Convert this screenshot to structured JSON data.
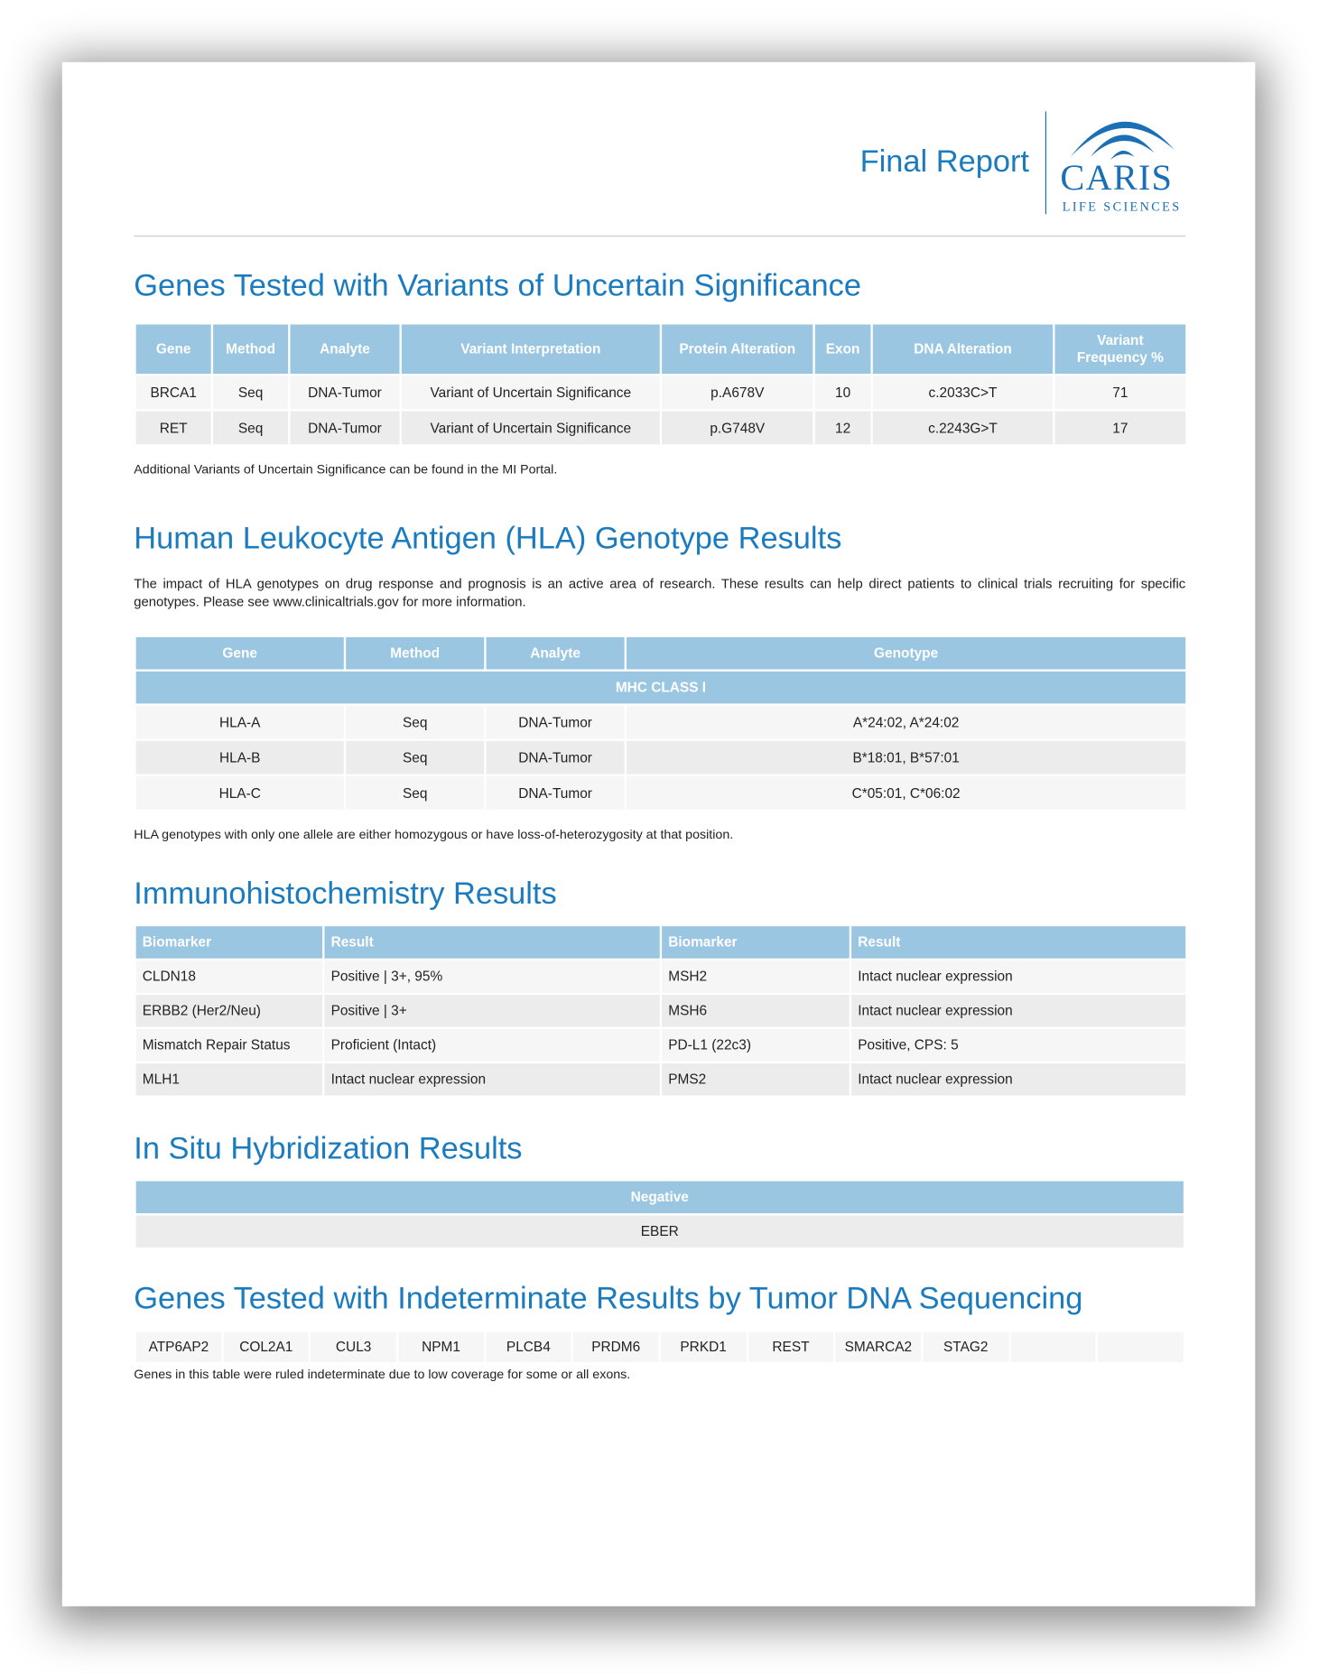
{
  "header": {
    "title": "Final Report",
    "logo": {
      "name": "CARIS",
      "sub": "LIFE SCIENCES",
      "color": "#1a6fb5"
    }
  },
  "colors": {
    "title": "#1a7bbf",
    "table_header": "#9ac6e2"
  },
  "vus": {
    "title": "Genes Tested with Variants of Uncertain Significance",
    "columns": [
      "Gene",
      "Method",
      "Analyte",
      "Variant Interpretation",
      "Protein Alteration",
      "Exon",
      "DNA Alteration",
      "Variant Frequency %"
    ],
    "rows": [
      [
        "BRCA1",
        "Seq",
        "DNA-Tumor",
        "Variant of Uncertain Significance",
        "p.A678V",
        "10",
        "c.2033C>T",
        "71"
      ],
      [
        "RET",
        "Seq",
        "DNA-Tumor",
        "Variant of Uncertain Significance",
        "p.G748V",
        "12",
        "c.2243G>T",
        "17"
      ]
    ],
    "note": "Additional Variants of Uncertain Significance can be found in the MI Portal."
  },
  "hla": {
    "title": "Human Leukocyte Antigen (HLA) Genotype Results",
    "intro": "The impact of HLA genotypes on drug response and prognosis is an active area of research. These results can help direct patients to clinical trials recruiting for specific genotypes. Please see www.clinicaltrials.gov for more information.",
    "columns": [
      "Gene",
      "Method",
      "Analyte",
      "Genotype"
    ],
    "group": "MHC CLASS I",
    "rows": [
      [
        "HLA-A",
        "Seq",
        "DNA-Tumor",
        "A*24:02, A*24:02"
      ],
      [
        "HLA-B",
        "Seq",
        "DNA-Tumor",
        "B*18:01, B*57:01"
      ],
      [
        "HLA-C",
        "Seq",
        "DNA-Tumor",
        "C*05:01, C*06:02"
      ]
    ],
    "note": "HLA genotypes with only one allele are either homozygous or have loss-of-heterozygosity at that position."
  },
  "ihc": {
    "title": "Immunohistochemistry Results",
    "columns": [
      "Biomarker",
      "Result",
      "Biomarker",
      "Result"
    ],
    "rows": [
      [
        "CLDN18",
        "Positive | 3+, 95%",
        "MSH2",
        "Intact nuclear expression"
      ],
      [
        "ERBB2 (Her2/Neu)",
        "Positive | 3+",
        "MSH6",
        "Intact nuclear expression"
      ],
      [
        "Mismatch Repair Status",
        "Proficient (Intact)",
        "PD-L1 (22c3)",
        "Positive, CPS: 5"
      ],
      [
        "MLH1",
        "Intact nuclear expression",
        "PMS2",
        "Intact nuclear expression"
      ]
    ]
  },
  "ish": {
    "title": "In Situ Hybridization Results",
    "header": "Negative",
    "value": "EBER"
  },
  "indeterminate": {
    "title": "Genes Tested with Indeterminate Results by Tumor DNA Sequencing",
    "genes": [
      "ATP6AP2",
      "COL2A1",
      "CUL3",
      "NPM1",
      "PLCB4",
      "PRDM6",
      "PRKD1",
      "REST",
      "SMARCA2",
      "STAG2",
      "",
      ""
    ],
    "note": "Genes in this table were ruled indeterminate due to low coverage for some or all exons."
  }
}
